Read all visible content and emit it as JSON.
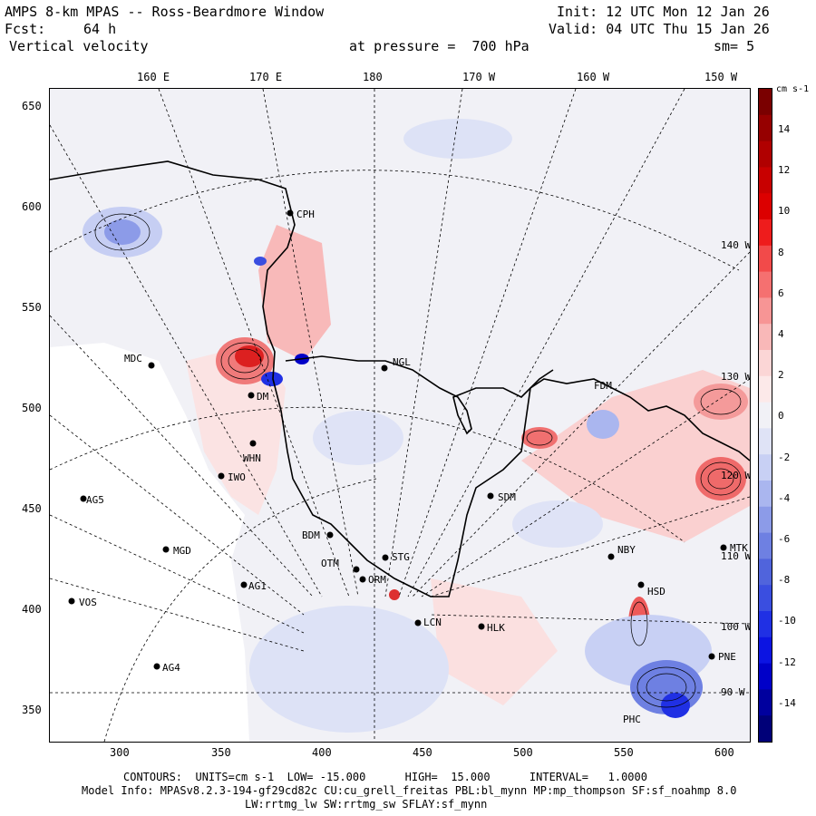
{
  "header": {
    "title": "AMPS 8-km MPAS -- Ross-Beardmore Window",
    "init": "Init: 12 UTC Mon 12 Jan 26",
    "fcst_label": "Fcst:",
    "fcst_value": "64 h",
    "valid": "Valid: 04 UTC Thu 15 Jan 26",
    "field": "Vertical velocity",
    "pressure": "at pressure =  700 hPa",
    "smoothing": "sm= 5"
  },
  "axes": {
    "top_lon_labels": [
      "160 E",
      "170 E",
      "180",
      "170 W",
      "160 W",
      "150 W"
    ],
    "left_y_labels": [
      "650",
      "600",
      "550",
      "500",
      "450",
      "400",
      "350"
    ],
    "bottom_x_labels": [
      "300",
      "350",
      "400",
      "450",
      "500",
      "550",
      "600"
    ],
    "inside_lon_labels": [
      "140 W",
      "130 W",
      "120 W",
      "110 W",
      "100 W",
      "90 W"
    ]
  },
  "stations": [
    {
      "name": "CPH",
      "key": "cph"
    },
    {
      "name": "MDC",
      "key": "mdc"
    },
    {
      "name": "NGL",
      "key": "ngl"
    },
    {
      "name": "FDM",
      "key": "fdm"
    },
    {
      "name": "DM",
      "key": "dm"
    },
    {
      "name": "WHN",
      "key": "whn"
    },
    {
      "name": "IWO",
      "key": "iwo"
    },
    {
      "name": "AG5",
      "key": "ag5"
    },
    {
      "name": "SDM",
      "key": "sdm"
    },
    {
      "name": "BDM",
      "key": "bdm"
    },
    {
      "name": "MGD",
      "key": "mgd"
    },
    {
      "name": "STG",
      "key": "stg"
    },
    {
      "name": "OTM",
      "key": "otm"
    },
    {
      "name": "ORM",
      "key": "orm"
    },
    {
      "name": "NBY",
      "key": "nby"
    },
    {
      "name": "MTK",
      "key": "mtk"
    },
    {
      "name": "AG1",
      "key": "ag1"
    },
    {
      "name": "VOS",
      "key": "vos"
    },
    {
      "name": "HSD",
      "key": "hsd"
    },
    {
      "name": "LCN",
      "key": "lcn"
    },
    {
      "name": "HLK",
      "key": "hlk"
    },
    {
      "name": "AG4",
      "key": "ag4"
    },
    {
      "name": "PNE",
      "key": "pne"
    },
    {
      "name": "PHC",
      "key": "phc"
    }
  ],
  "colorbar": {
    "units": "cm s-1",
    "labels": [
      "14",
      "12",
      "10",
      "8",
      "6",
      "4",
      "2",
      "0",
      "-2",
      "-4",
      "-6",
      "-8",
      "-10",
      "-12",
      "-14"
    ],
    "colors": [
      "#7a0000",
      "#960000",
      "#b00000",
      "#c80000",
      "#dc0000",
      "#ee1c1c",
      "#f24a4a",
      "#f57070",
      "#f79595",
      "#f9b8b8",
      "#fbd6d6",
      "#fce9e9",
      "#f1f1f6",
      "#dfe3f6",
      "#c8d0f4",
      "#aab6ef",
      "#8c9be8",
      "#6e80e2",
      "#5064dc",
      "#3a4ee0",
      "#2030e4",
      "#0c14e2",
      "#0000c8",
      "#00009e",
      "#000078"
    ]
  },
  "footer": {
    "contours": "CONTOURS:  UNITS=cm s-1  LOW= -15.000      HIGH=  15.000      INTERVAL=   1.0000",
    "model_info": "Model Info: MPASv8.2.3-194-gf29cd82c CU:cu_grell_freitas PBL:bl_mynn MP:mp_thompson SF:sf_noahmp 8.0",
    "model_info2": "LW:rrtmg_lw SW:rrtmg_sw SFLAY:sf_mynn"
  }
}
